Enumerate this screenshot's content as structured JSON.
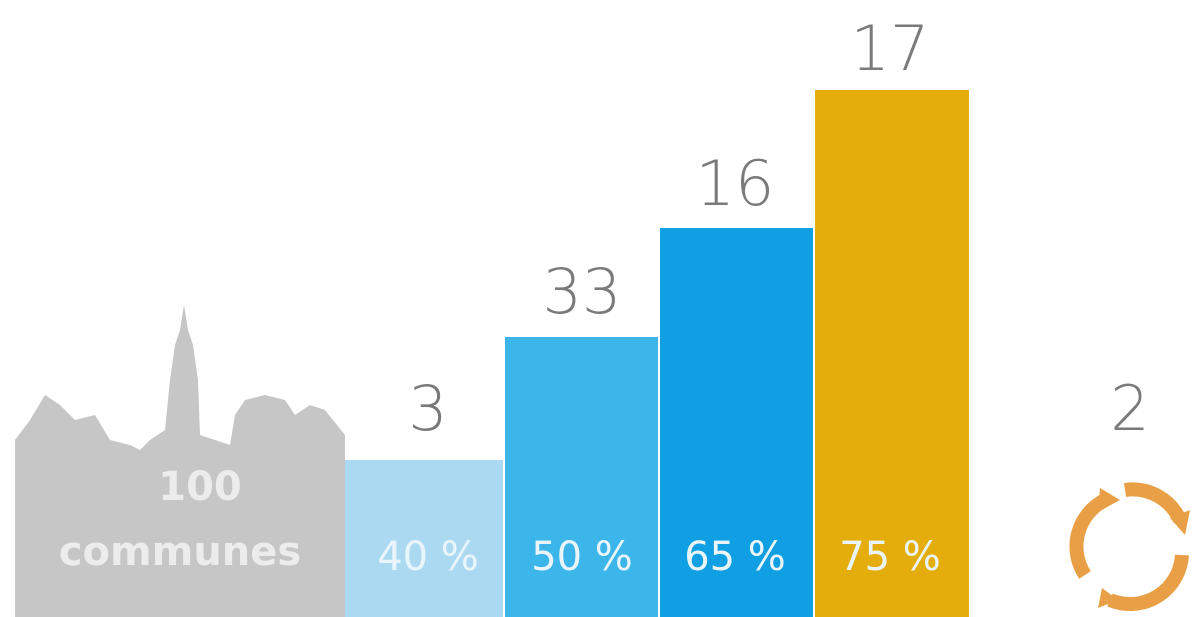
{
  "city": {
    "count": 100,
    "label": "communes"
  },
  "groups": [
    {
      "count": 3,
      "label": "40 %"
    },
    {
      "count": 33,
      "label": "50 %"
    },
    {
      "count": 16,
      "label": "65 %"
    },
    {
      "count": 17,
      "label": "75 %"
    }
  ],
  "other": {
    "count": 2
  }
}
